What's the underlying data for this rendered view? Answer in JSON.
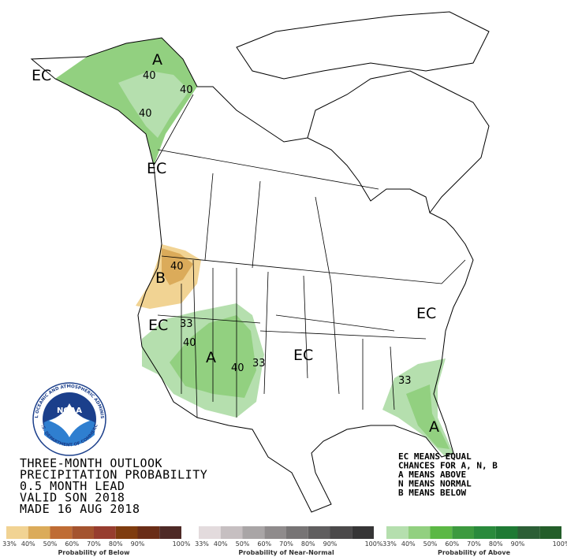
{
  "map_labels": [
    "EC",
    "A",
    "40",
    "40",
    "40",
    "EC",
    "40",
    "B",
    "EC",
    "33",
    "40",
    "A",
    "40",
    "33",
    "EC",
    "EC",
    "33",
    "A"
  ],
  "title_lines": [
    "THREE-MONTH OUTLOOK",
    "PRECIPITATION PROBABILITY",
    "0.5 MONTH LEAD",
    "VALID SON 2018",
    "MADE 16 AUG 2018"
  ],
  "notes": [
    "EC MEANS EQUAL",
    "CHANCES FOR A, N, B",
    "A MEANS ABOVE",
    "N MEANS NORMAL",
    "B MEANS BELOW"
  ],
  "logo": {
    "name": "NOAA",
    "agency": "NATIONAL OCEANIC AND ATMOSPHERIC ADMINISTRATION",
    "department": "U.S. DEPARTMENT OF COMMERCE"
  },
  "legend": [
    {
      "title": "Probability of Below",
      "colors": [
        "#f1d393",
        "#dbab5a",
        "#bf6c34",
        "#a4532e",
        "#973d2e",
        "#7f3c0f",
        "#6a2d17",
        "#4e2a26"
      ],
      "ticks": [
        "33%",
        "40%",
        "50%",
        "60%",
        "70%",
        "80%",
        "90%",
        "100%"
      ]
    },
    {
      "title": "Probability of Near-Normal",
      "colors": [
        "#e3dbdd",
        "#c6bfc1",
        "#a9a5a6",
        "#8f8b8c",
        "#777475",
        "#605e5f",
        "#4b494a",
        "#363536"
      ],
      "ticks": [
        "33%",
        "40%",
        "50%",
        "60%",
        "70%",
        "80%",
        "90%",
        "100%"
      ]
    },
    {
      "title": "Probability of Above",
      "colors": [
        "#b5dfae",
        "#92d080",
        "#5cb845",
        "#3d9a3f",
        "#2a8a3c",
        "#1f7a34",
        "#2c5f36",
        "#245e2a"
      ],
      "ticks": [
        "33%",
        "40%",
        "50%",
        "60%",
        "70%",
        "80%",
        "90%",
        "100%"
      ]
    }
  ]
}
